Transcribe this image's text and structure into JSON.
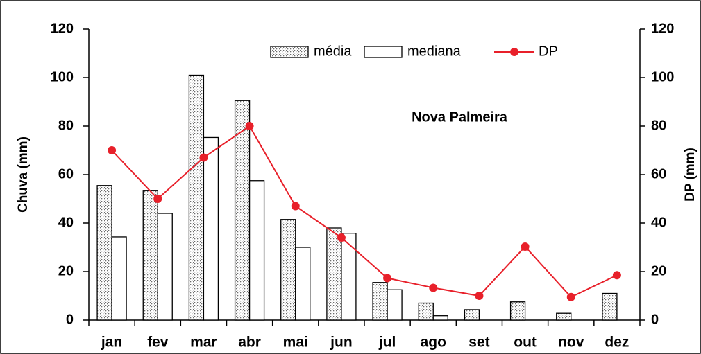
{
  "chart_data": {
    "type": "bar-line",
    "annotation": "Nova Palmeira",
    "y_label": "Chuva (mm)",
    "y2_label": "DP (mm)",
    "categories": [
      "jan",
      "fev",
      "mar",
      "abr",
      "mai",
      "jun",
      "jul",
      "ago",
      "set",
      "out",
      "nov",
      "dez"
    ],
    "series": [
      {
        "name": "média",
        "type": "bar",
        "color": "#6b6b6b",
        "values": [
          55.5,
          53.5,
          101,
          90.5,
          41.5,
          38,
          15.5,
          7,
          4.3,
          7.5,
          2.8,
          11
        ]
      },
      {
        "name": "mediana",
        "type": "bar",
        "color": "#ffffff",
        "values": [
          34.3,
          44,
          75.3,
          57.5,
          30,
          35.8,
          12.5,
          1.8,
          0,
          0,
          0,
          0
        ]
      },
      {
        "name": "DP",
        "type": "line",
        "axis": "y2",
        "color": "#e8202a",
        "values": [
          70,
          50,
          67,
          80,
          47,
          34,
          17.3,
          13.3,
          10,
          30.3,
          9.5,
          18.5
        ]
      }
    ],
    "ylim": [
      0,
      120
    ],
    "yticks": [
      0,
      20,
      40,
      60,
      80,
      100,
      120
    ],
    "y2lim": [
      0,
      120
    ],
    "y2ticks": [
      0,
      20,
      40,
      60,
      80,
      100,
      120
    ],
    "legend": "top"
  }
}
